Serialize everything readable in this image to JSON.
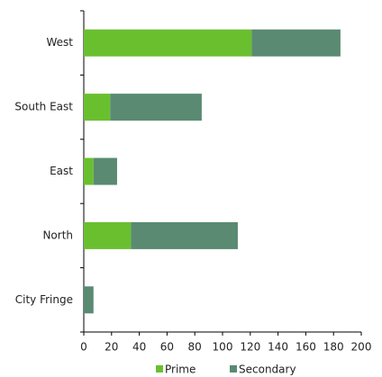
{
  "chart_data": {
    "type": "bar",
    "orientation": "horizontal",
    "stacked": true,
    "categories": [
      "West",
      "South East",
      "East",
      "North",
      "City Fringe"
    ],
    "series": [
      {
        "name": "Prime",
        "color": "#6abf2f",
        "values": [
          121,
          19,
          7,
          34,
          0
        ]
      },
      {
        "name": "Secondary",
        "color": "#5a8a72",
        "values": [
          64,
          66,
          17,
          77,
          7
        ]
      }
    ],
    "xlim": [
      0,
      200
    ],
    "xticks": [
      0,
      20,
      40,
      60,
      80,
      100,
      120,
      140,
      160,
      180,
      200
    ],
    "legend": "bottom"
  }
}
